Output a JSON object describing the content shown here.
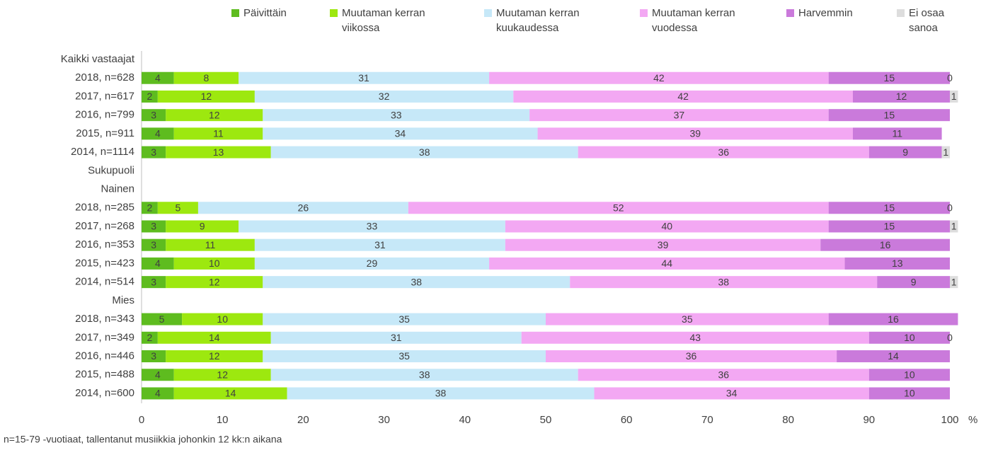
{
  "chart_data": {
    "type": "stacked-barh",
    "categories": [
      "Kaikki vastaajat",
      "2018, n=628",
      "2017, n=617",
      "2016, n=799",
      "2015, n=911",
      "2014, n=1114",
      "Sukupuoli",
      "Nainen",
      "2018, n=285",
      "2017, n=268",
      "2016, n=353",
      "2015, n=423",
      "2014, n=514",
      "Mies",
      "2018, n=343",
      "2017, n=349",
      "2016, n=446",
      "2015, n=488",
      "2014, n=600"
    ],
    "series": [
      {
        "name": "Päivittäin",
        "color": "#5ebc1f",
        "values": [
          null,
          4,
          2,
          3,
          4,
          3,
          null,
          null,
          2,
          3,
          3,
          4,
          3,
          null,
          5,
          2,
          3,
          4,
          4
        ]
      },
      {
        "name": "Muutaman kerran viikossa",
        "color": "#9de80f",
        "values": [
          null,
          8,
          12,
          12,
          11,
          13,
          null,
          null,
          5,
          9,
          11,
          10,
          12,
          null,
          10,
          14,
          12,
          12,
          14
        ]
      },
      {
        "name": "Muutaman kerran kuukaudessa",
        "color": "#c6e8f8",
        "values": [
          null,
          31,
          32,
          33,
          34,
          38,
          null,
          null,
          26,
          33,
          31,
          29,
          38,
          null,
          35,
          31,
          35,
          38,
          38
        ]
      },
      {
        "name": "Muutaman kerran vuodessa",
        "color": "#f3a8f3",
        "values": [
          null,
          42,
          42,
          37,
          39,
          36,
          null,
          null,
          52,
          40,
          39,
          44,
          38,
          null,
          35,
          43,
          36,
          36,
          34
        ]
      },
      {
        "name": "Harvemmin",
        "color": "#ca7adb",
        "values": [
          null,
          15,
          12,
          15,
          11,
          9,
          null,
          null,
          15,
          15,
          16,
          13,
          9,
          null,
          16,
          10,
          14,
          10,
          10
        ]
      },
      {
        "name": "Ei osaa sanoa",
        "color": "#dddddd",
        "values": [
          null,
          0,
          1,
          null,
          null,
          1,
          null,
          null,
          0,
          1,
          null,
          null,
          1,
          null,
          null,
          0,
          null,
          null,
          null
        ]
      }
    ],
    "xlim": [
      0,
      100
    ],
    "xticks": [
      0,
      10,
      20,
      30,
      40,
      50,
      60,
      70,
      80,
      90,
      100
    ],
    "xlabel": "%",
    "note": "n=15-79 -vuotiaat, tallentanut musiikkia johonkin 12 kk:n aikana"
  }
}
